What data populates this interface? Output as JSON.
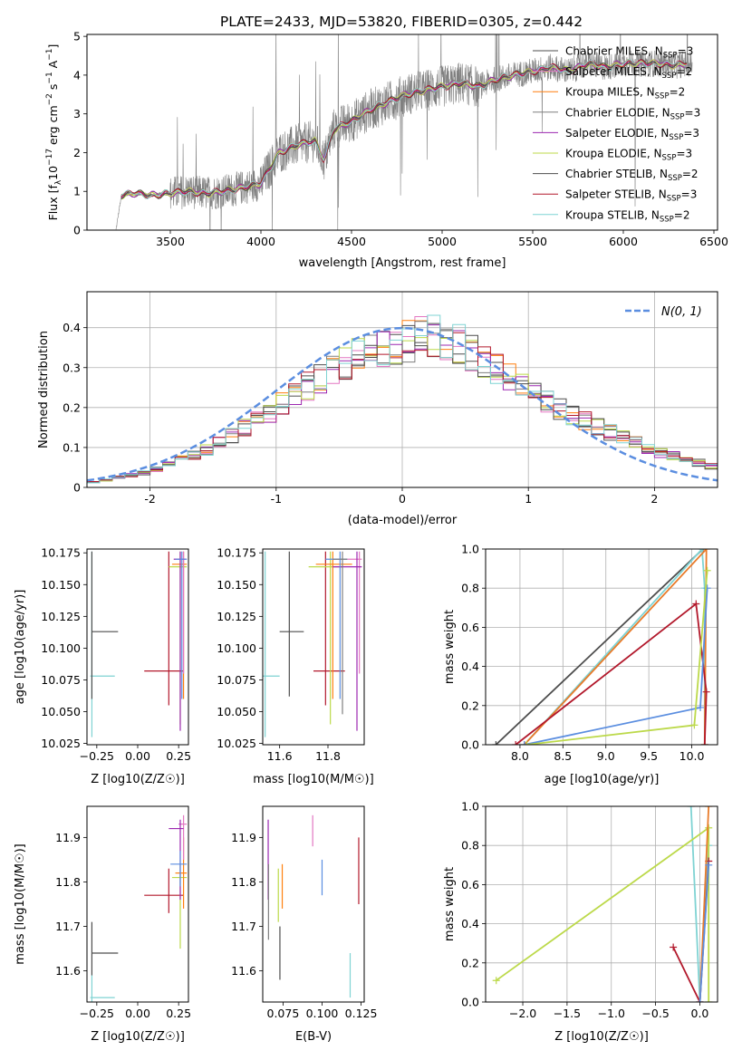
{
  "title": "PLATE=2433, MJD=53820, FIBERID=0305, z=0.442",
  "colors": {
    "ChM": "#4d4d4d",
    "SaM": "#e377c2",
    "KrM": "#ff7f0e",
    "ChE": "#7f7f7f",
    "SaE": "#9c27b0",
    "KrE": "#bcd94a",
    "ChS": "#4d4d4d",
    "SaS": "#b2182b",
    "KrS": "#7fd3d3",
    "blue": "#5b8ee0",
    "orange": "#e87b2a",
    "data": "#808080"
  },
  "legend": [
    {
      "key": "ChM",
      "pre": "Chabrier MILES, N",
      "post": "=3"
    },
    {
      "key": "SaM",
      "pre": "Salpeter MILES, N",
      "post": "=2"
    },
    {
      "key": "KrM",
      "pre": "Kroupa MILES, N",
      "post": "=2"
    },
    {
      "key": "ChE",
      "pre": "Chabrier ELODIE, N",
      "post": "=3"
    },
    {
      "key": "SaE",
      "pre": "Salpeter ELODIE, N",
      "post": "=3"
    },
    {
      "key": "KrE",
      "pre": "Kroupa ELODIE, N",
      "post": "=3"
    },
    {
      "key": "ChS",
      "pre": "Chabrier STELIB, N",
      "post": "=2"
    },
    {
      "key": "SaS",
      "pre": "Salpeter STELIB, N",
      "post": "=3"
    },
    {
      "key": "KrS",
      "pre": "Kroupa STELIB, N",
      "post": "=2"
    }
  ],
  "legend_sub": "SSP",
  "chart_data": [
    {
      "id": "spectrum",
      "type": "line",
      "xlabel": "wavelength [Angstrom, rest frame]",
      "ylabel": "Flux [f_λ 10^-17 erg cm^-2 s^-1 A^-1]",
      "xlim": [
        3040,
        6520
      ],
      "ylim": [
        0,
        5.05
      ],
      "xticks": [
        3500,
        4000,
        4500,
        5000,
        5500,
        6000,
        6500
      ],
      "yticks": [
        0,
        1,
        2,
        3,
        4,
        5
      ],
      "continuum": [
        [
          3200,
          0.0
        ],
        [
          3230,
          0.9
        ],
        [
          3300,
          0.95
        ],
        [
          3400,
          0.9
        ],
        [
          3500,
          0.95
        ],
        [
          3600,
          1.0
        ],
        [
          3700,
          0.95
        ],
        [
          3800,
          1.0
        ],
        [
          3900,
          1.1
        ],
        [
          4000,
          1.2
        ],
        [
          4050,
          1.6
        ],
        [
          4100,
          2.0
        ],
        [
          4200,
          2.2
        ],
        [
          4300,
          2.3
        ],
        [
          4350,
          1.8
        ],
        [
          4400,
          2.6
        ],
        [
          4500,
          2.8
        ],
        [
          4600,
          3.1
        ],
        [
          4700,
          3.3
        ],
        [
          4800,
          3.5
        ],
        [
          4900,
          3.6
        ],
        [
          5000,
          3.7
        ],
        [
          5100,
          3.8
        ],
        [
          5200,
          3.7
        ],
        [
          5300,
          3.9
        ],
        [
          5400,
          4.0
        ],
        [
          5500,
          4.1
        ],
        [
          5600,
          4.2
        ],
        [
          5700,
          4.1
        ],
        [
          5800,
          4.3
        ],
        [
          5900,
          4.2
        ],
        [
          6000,
          4.3
        ],
        [
          6100,
          4.3
        ],
        [
          6200,
          4.3
        ],
        [
          6300,
          4.25
        ],
        [
          6350,
          4.3
        ]
      ]
    },
    {
      "id": "residuals",
      "type": "histogram",
      "xlabel": "(data-model)/error",
      "ylabel": "Normed distribution",
      "xlim": [
        -2.5,
        2.5
      ],
      "ylim": [
        0,
        0.49
      ],
      "xticks": [
        -2,
        -1,
        0,
        1,
        2
      ],
      "yticks": [
        0.0,
        0.1,
        0.2,
        0.3,
        0.4
      ],
      "bin_width": 0.1,
      "envelope": [
        [
          -2.5,
          0.01
        ],
        [
          -2.0,
          0.04
        ],
        [
          -1.5,
          0.1
        ],
        [
          -1.0,
          0.2
        ],
        [
          -0.5,
          0.31
        ],
        [
          0.0,
          0.36
        ],
        [
          0.2,
          0.38
        ],
        [
          0.5,
          0.35
        ],
        [
          1.0,
          0.24
        ],
        [
          1.5,
          0.16
        ],
        [
          2.0,
          0.09
        ],
        [
          2.5,
          0.05
        ]
      ],
      "reference_label": "N(0,1)"
    },
    {
      "id": "age_vs_Z",
      "type": "scatter",
      "xlabel": "Z [log10(Z/Z☉)]",
      "ylabel": "age  [log10(age/yr)]",
      "xlim": [
        -0.31,
        0.31
      ],
      "ylim": [
        10.024,
        10.178
      ],
      "xticks": [
        -0.25,
        0.0,
        0.25
      ],
      "xtick_labels": [
        "−0.25",
        "0.00",
        "0.25"
      ],
      "yticks": [
        10.025,
        10.05,
        10.075,
        10.1,
        10.125,
        10.15,
        10.175
      ],
      "ytick_labels": [
        "10.025",
        "10.050",
        "10.075",
        "10.100",
        "10.125",
        "10.150",
        "10.175"
      ],
      "errorbars": [
        {
          "c": "KrS",
          "x": -0.28,
          "y": 10.078,
          "xl": -0.29,
          "xh": -0.14,
          "yl": 10.03,
          "yh": 10.176
        },
        {
          "c": "ChS",
          "x": -0.28,
          "y": 10.113,
          "xl": -0.28,
          "xh": -0.12,
          "yl": 10.06,
          "yh": 10.176
        },
        {
          "c": "SaS",
          "x": 0.19,
          "y": 10.082,
          "xl": 0.04,
          "xh": 0.28,
          "yl": 10.055,
          "yh": 10.176
        },
        {
          "c": "KrE",
          "x": 0.26,
          "y": 10.164,
          "xl": 0.19,
          "xh": 0.3,
          "yl": 10.04,
          "yh": 10.176
        },
        {
          "c": "KrM",
          "x": 0.28,
          "y": 10.166,
          "xl": 0.21,
          "xh": 0.3,
          "yl": 10.06,
          "yh": 10.176
        },
        {
          "c": "SaM",
          "x": 0.28,
          "y": 10.17,
          "xl": 0.23,
          "xh": 0.3,
          "yl": 10.08,
          "yh": 10.176
        },
        {
          "c": "SaE",
          "x": 0.26,
          "y": 10.17,
          "xl": 0.22,
          "xh": 0.29,
          "yl": 10.035,
          "yh": 10.176
        },
        {
          "c": "blue",
          "x": 0.27,
          "y": 10.17,
          "xl": 0.23,
          "xh": 0.3,
          "yl": 10.06,
          "yh": 10.176
        }
      ]
    },
    {
      "id": "age_vs_mass",
      "type": "scatter",
      "xlabel": "mass [log10(M/M☉)]",
      "ylabel": "",
      "xlim": [
        11.53,
        11.95
      ],
      "ylim": [
        10.024,
        10.178
      ],
      "xticks": [
        11.6,
        11.8
      ],
      "xtick_labels": [
        "11.6",
        "11.8"
      ],
      "yticks": [
        10.025,
        10.05,
        10.075,
        10.1,
        10.125,
        10.15,
        10.175
      ],
      "ytick_labels": [
        "10.025",
        "10.050",
        "10.075",
        "10.100",
        "10.125",
        "10.150",
        "10.175"
      ],
      "errorbars": [
        {
          "c": "KrS",
          "x": 11.54,
          "y": 10.078,
          "xl": 11.53,
          "xh": 11.6,
          "yl": 10.03,
          "yh": 10.176
        },
        {
          "c": "ChS",
          "x": 11.64,
          "y": 10.113,
          "xl": 11.6,
          "xh": 11.7,
          "yl": 10.062,
          "yh": 10.176
        },
        {
          "c": "SaS",
          "x": 11.79,
          "y": 10.082,
          "xl": 11.74,
          "xh": 11.87,
          "yl": 10.055,
          "yh": 10.176
        },
        {
          "c": "KrE",
          "x": 11.81,
          "y": 10.164,
          "xl": 11.72,
          "xh": 11.86,
          "yl": 10.04,
          "yh": 10.176
        },
        {
          "c": "KrM",
          "x": 11.82,
          "y": 10.166,
          "xl": 11.75,
          "xh": 11.9,
          "yl": 10.06,
          "yh": 10.176
        },
        {
          "c": "SaM",
          "x": 11.93,
          "y": 10.17,
          "xl": 11.88,
          "xh": 11.94,
          "yl": 10.08,
          "yh": 10.176
        },
        {
          "c": "SaE",
          "x": 11.92,
          "y": 10.164,
          "xl": 11.82,
          "xh": 11.94,
          "yl": 10.035,
          "yh": 10.176
        },
        {
          "c": "blue",
          "x": 11.85,
          "y": 10.17,
          "xl": 11.79,
          "xh": 11.88,
          "yl": 10.06,
          "yh": 10.176
        },
        {
          "c": "ChE",
          "x": 11.86,
          "y": 10.17,
          "xl": 11.82,
          "xh": 11.88,
          "yl": 10.048,
          "yh": 10.176
        }
      ]
    },
    {
      "id": "mw_vs_age",
      "type": "line",
      "xlabel": "age  [log10(age/yr)]",
      "ylabel": "mass weight",
      "xlim": [
        7.6,
        10.3
      ],
      "ylim": [
        0,
        1.0
      ],
      "xticks": [
        8.0,
        8.5,
        9.0,
        9.5,
        10.0
      ],
      "xtick_labels": [
        "8.0",
        "8.5",
        "9.0",
        "9.5",
        "10.0"
      ],
      "yticks": [
        0,
        0.2,
        0.4,
        0.6,
        0.8,
        1.0
      ],
      "ytick_labels": [
        "0.0",
        "0.2",
        "0.4",
        "0.6",
        "0.8",
        "1.0"
      ],
      "series": [
        {
          "c": "ChS",
          "pts": [
            [
              7.72,
              0.0
            ],
            [
              10.13,
              1.0
            ]
          ]
        },
        {
          "c": "KrS",
          "pts": [
            [
              8.05,
              0.0
            ],
            [
              10.12,
              1.0
            ],
            [
              10.15,
              0.8
            ],
            [
              10.15,
              0.0
            ]
          ]
        },
        {
          "c": "orange",
          "pts": [
            [
              8.05,
              0.0
            ],
            [
              10.17,
              1.0
            ],
            [
              10.15,
              0.0
            ]
          ]
        },
        {
          "c": "SaS",
          "pts": [
            [
              7.95,
              0.0
            ],
            [
              10.05,
              0.72
            ],
            [
              10.17,
              0.27
            ],
            [
              10.15,
              0.0
            ]
          ]
        },
        {
          "c": "blue",
          "pts": [
            [
              8.05,
              0.0
            ],
            [
              10.1,
              0.19
            ],
            [
              10.18,
              0.8
            ]
          ]
        },
        {
          "c": "KrE",
          "pts": [
            [
              8.08,
              0.0
            ],
            [
              10.03,
              0.1
            ],
            [
              10.18,
              0.89
            ]
          ]
        }
      ]
    },
    {
      "id": "mass_vs_Z",
      "type": "scatter",
      "xlabel": "Z [log10(Z/Z☉)]",
      "ylabel": "mass [log10(M/M☉)]",
      "xlim": [
        -0.31,
        0.31
      ],
      "ylim": [
        11.53,
        11.97
      ],
      "xticks": [
        -0.25,
        0.0,
        0.25
      ],
      "xtick_labels": [
        "−0.25",
        "0.00",
        "0.25"
      ],
      "yticks": [
        11.6,
        11.7,
        11.8,
        11.9
      ],
      "ytick_labels": [
        "11.6",
        "11.7",
        "11.8",
        "11.9"
      ],
      "errorbars": [
        {
          "c": "KrS",
          "x": -0.28,
          "y": 11.54,
          "xl": -0.29,
          "xh": -0.14,
          "yl": 11.53,
          "yh": 11.59
        },
        {
          "c": "ChS",
          "x": -0.28,
          "y": 11.64,
          "xl": -0.28,
          "xh": -0.12,
          "yl": 11.59,
          "yh": 11.71
        },
        {
          "c": "SaS",
          "x": 0.19,
          "y": 11.77,
          "xl": 0.04,
          "xh": 0.28,
          "yl": 11.73,
          "yh": 11.83
        },
        {
          "c": "KrE",
          "x": 0.26,
          "y": 11.81,
          "xl": 0.21,
          "xh": 0.3,
          "yl": 11.65,
          "yh": 11.84
        },
        {
          "c": "KrM",
          "x": 0.28,
          "y": 11.82,
          "xl": 0.23,
          "xh": 0.3,
          "yl": 11.74,
          "yh": 11.9
        },
        {
          "c": "SaM",
          "x": 0.28,
          "y": 11.93,
          "xl": 0.25,
          "xh": 0.3,
          "yl": 11.85,
          "yh": 11.95
        },
        {
          "c": "SaE",
          "x": 0.26,
          "y": 11.92,
          "xl": 0.19,
          "xh": 0.28,
          "yl": 11.76,
          "yh": 11.94
        },
        {
          "c": "blue",
          "x": 0.26,
          "y": 11.84,
          "xl": 0.2,
          "xh": 0.3,
          "yl": 11.79,
          "yh": 11.87
        }
      ]
    },
    {
      "id": "mass_vs_EBV",
      "type": "scatter",
      "xlabel": "E(B-V)",
      "ylabel": "",
      "xlim": [
        0.062,
        0.127
      ],
      "ylim": [
        11.53,
        11.97
      ],
      "xticks": [
        0.075,
        0.1,
        0.125
      ],
      "xtick_labels": [
        "0.075",
        "0.100",
        "0.125"
      ],
      "yticks": [
        11.6,
        11.7,
        11.8,
        11.9
      ],
      "ytick_labels": [
        "11.6",
        "11.7",
        "11.8",
        "11.9"
      ],
      "vbars": [
        {
          "c": "SaE",
          "x": 0.0655,
          "yl": 11.76,
          "yh": 11.94
        },
        {
          "c": "ChE",
          "x": 0.0657,
          "yl": 11.67,
          "yh": 11.84
        },
        {
          "c": "KrE",
          "x": 0.072,
          "yl": 11.71,
          "yh": 11.83
        },
        {
          "c": "KrM",
          "x": 0.0745,
          "yl": 11.74,
          "yh": 11.84
        },
        {
          "c": "ChS",
          "x": 0.073,
          "yl": 11.58,
          "yh": 11.7
        },
        {
          "c": "SaM",
          "x": 0.094,
          "yl": 11.88,
          "yh": 11.95
        },
        {
          "c": "blue",
          "x": 0.1,
          "yl": 11.77,
          "yh": 11.85
        },
        {
          "c": "KrS",
          "x": 0.118,
          "yl": 11.54,
          "yh": 11.64
        },
        {
          "c": "SaS",
          "x": 0.1235,
          "yl": 11.75,
          "yh": 11.9
        }
      ]
    },
    {
      "id": "mw_vs_Z",
      "type": "line",
      "xlabel": "Z [log10(Z/Z☉)]",
      "ylabel": "mass weight",
      "xlim": [
        -2.42,
        0.2
      ],
      "ylim": [
        0,
        1.0
      ],
      "xticks": [
        -2.0,
        -1.5,
        -1.0,
        -0.5,
        0.0
      ],
      "xtick_labels": [
        "−2.0",
        "−1.5",
        "−1.0",
        "−0.5",
        "0.0"
      ],
      "yticks": [
        0,
        0.2,
        0.4,
        0.6,
        0.8,
        1.0
      ],
      "ytick_labels": [
        "0.0",
        "0.2",
        "0.4",
        "0.6",
        "0.8",
        "1.0"
      ],
      "series": [
        {
          "c": "KrS",
          "pts": [
            [
              -0.1,
              1.0
            ],
            [
              0.0,
              0.0
            ],
            [
              0.1,
              0.8
            ]
          ]
        },
        {
          "c": "KrE",
          "pts": [
            [
              -2.3,
              0.11
            ],
            [
              0.1,
              0.89
            ],
            [
              0.1,
              0.0
            ]
          ]
        },
        {
          "c": "SaS",
          "pts": [
            [
              -0.3,
              0.28
            ],
            [
              0.0,
              0.0
            ],
            [
              0.1,
              0.72
            ]
          ]
        },
        {
          "c": "orange",
          "pts": [
            [
              0.0,
              0.0
            ],
            [
              0.1,
              1.0
            ]
          ]
        },
        {
          "c": "blue",
          "pts": [
            [
              0.0,
              0.0
            ],
            [
              0.1,
              0.7
            ]
          ]
        }
      ]
    }
  ]
}
